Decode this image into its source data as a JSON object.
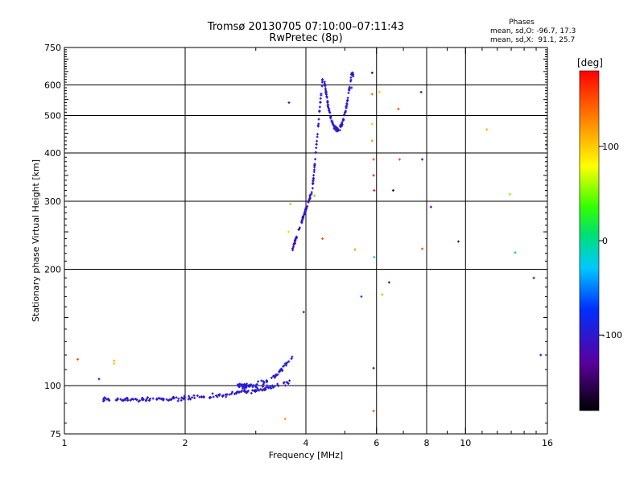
{
  "title_line1": "Tromsø 20130705 07:10:00–07:11:43",
  "title_line2": "RwPretec (8p)",
  "stats": {
    "heading": "Phases",
    "line_o": "mean, sd,O: -96.7, 17.3",
    "line_x": "mean, sd,X:  91.1, 25.7"
  },
  "colorbar": {
    "unit": "[deg]",
    "range": [
      -180,
      180
    ],
    "ticks": [
      {
        "value": 100,
        "label": "100"
      },
      {
        "value": 0,
        "label": "0"
      },
      {
        "value": -100,
        "label": "-100"
      }
    ]
  },
  "chart_data": {
    "type": "scatter",
    "xlabel": "Frequency [MHz]",
    "ylabel": "Stationary phase Virtual Height [km]",
    "xscale": "log",
    "yscale": "log",
    "xlim": [
      1,
      16
    ],
    "ylim": [
      75,
      750
    ],
    "xticks": [
      {
        "value": 1,
        "label": "1"
      },
      {
        "value": 2,
        "label": "2"
      },
      {
        "value": 4,
        "label": "4"
      },
      {
        "value": 6,
        "label": "6"
      },
      {
        "value": 8,
        "label": "8"
      },
      {
        "value": 10,
        "label": "10"
      },
      {
        "value": 16,
        "label": "16"
      }
    ],
    "xminor": [
      3,
      5,
      7,
      9,
      11,
      12,
      13,
      14,
      15
    ],
    "yticks": [
      {
        "value": 75,
        "label": "75"
      },
      {
        "value": 100,
        "label": "100"
      },
      {
        "value": 200,
        "label": "200"
      },
      {
        "value": 300,
        "label": "300"
      },
      {
        "value": 400,
        "label": "400"
      },
      {
        "value": 500,
        "label": "500"
      },
      {
        "value": 600,
        "label": "600"
      },
      {
        "value": 750,
        "label": "750"
      }
    ],
    "major_gridlines_x": [
      2,
      4,
      6,
      8,
      10
    ],
    "major_gridlines_y": [
      100,
      200,
      300,
      400,
      500,
      600
    ],
    "color_dimension": "phase [deg]",
    "clusters": [
      {
        "name": "E-region trace",
        "n": 170,
        "f": [
          1.25,
          3.65
        ],
        "h": [
          92,
          102
        ],
        "spread": 0.018,
        "phase": -100
      },
      {
        "name": "E-region upper trace",
        "n": 70,
        "f": [
          2.7,
          3.7
        ],
        "h": [
          100,
          120
        ],
        "spread": 0.022,
        "phase": -95
      },
      {
        "name": "F-region rise",
        "n": 60,
        "f": [
          3.7,
          4.15
        ],
        "h": [
          225,
          320
        ],
        "spread": 0.015,
        "phase": -110
      },
      {
        "name": "F-region cusp",
        "n": 40,
        "f": [
          4.15,
          4.4
        ],
        "h": [
          320,
          620
        ],
        "spread": 0.02,
        "phase": -105
      },
      {
        "name": "F-region O trace",
        "n": 110,
        "f": [
          4.45,
          5.25
        ],
        "h": [
          460,
          640
        ],
        "spread": 0.02,
        "phase": -100
      }
    ],
    "points": [
      {
        "f": 1.08,
        "h": 117,
        "phase": 150
      },
      {
        "f": 1.33,
        "h": 116,
        "phase": 115
      },
      {
        "f": 1.33,
        "h": 114,
        "phase": 100
      },
      {
        "f": 1.22,
        "h": 104,
        "phase": -110
      },
      {
        "f": 3.63,
        "h": 540,
        "phase": -110
      },
      {
        "f": 3.66,
        "h": 295,
        "phase": 110
      },
      {
        "f": 3.62,
        "h": 250,
        "phase": 95
      },
      {
        "f": 3.55,
        "h": 82,
        "phase": 120
      },
      {
        "f": 3.95,
        "h": 155,
        "phase": -100
      },
      {
        "f": 4.2,
        "h": 310,
        "phase": 40
      },
      {
        "f": 4.4,
        "h": 240,
        "phase": 150
      },
      {
        "f": 5.3,
        "h": 225,
        "phase": 120
      },
      {
        "f": 5.2,
        "h": 590,
        "phase": -95
      },
      {
        "f": 5.5,
        "h": 170,
        "phase": -60
      },
      {
        "f": 5.85,
        "h": 645,
        "phase": -150
      },
      {
        "f": 5.85,
        "h": 568,
        "phase": 140
      },
      {
        "f": 5.85,
        "h": 475,
        "phase": 100
      },
      {
        "f": 5.85,
        "h": 430,
        "phase": 120
      },
      {
        "f": 5.9,
        "h": 385,
        "phase": 150
      },
      {
        "f": 5.9,
        "h": 350,
        "phase": 170
      },
      {
        "f": 5.92,
        "h": 320,
        "phase": 175
      },
      {
        "f": 5.92,
        "h": 215,
        "phase": 0
      },
      {
        "f": 5.9,
        "h": 111,
        "phase": -120
      },
      {
        "f": 5.9,
        "h": 86,
        "phase": 150
      },
      {
        "f": 6.1,
        "h": 575,
        "phase": 100
      },
      {
        "f": 6.2,
        "h": 172,
        "phase": 110
      },
      {
        "f": 6.45,
        "h": 185,
        "phase": -120
      },
      {
        "f": 6.6,
        "h": 320,
        "phase": -150
      },
      {
        "f": 6.8,
        "h": 520,
        "phase": 150
      },
      {
        "f": 6.85,
        "h": 385,
        "phase": 150
      },
      {
        "f": 7.75,
        "h": 575,
        "phase": -110
      },
      {
        "f": 7.8,
        "h": 385,
        "phase": -100
      },
      {
        "f": 7.8,
        "h": 226,
        "phase": 150
      },
      {
        "f": 8.2,
        "h": 290,
        "phase": -120
      },
      {
        "f": 9.6,
        "h": 236,
        "phase": -110
      },
      {
        "f": 11.3,
        "h": 460,
        "phase": 110
      },
      {
        "f": 12.9,
        "h": 313,
        "phase": 50
      },
      {
        "f": 13.3,
        "h": 221,
        "phase": 10
      },
      {
        "f": 14.8,
        "h": 190,
        "phase": -100
      },
      {
        "f": 15.4,
        "h": 120,
        "phase": -120
      },
      {
        "f": 15.9,
        "h": 420,
        "phase": 130
      }
    ]
  }
}
